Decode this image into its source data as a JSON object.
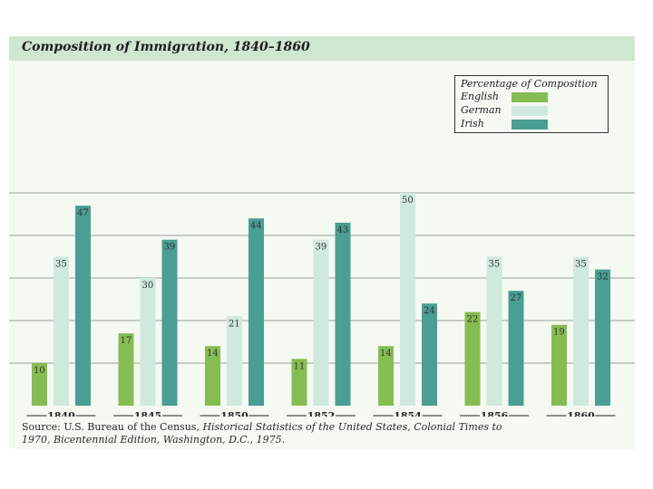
{
  "title": "Composition of Immigration, 1840–1860",
  "chart_data": {
    "type": "bar",
    "title": "Composition of Immigration, 1840–1860",
    "legend_title": "Percentage of Composition",
    "legend_position": "top-right",
    "categories": [
      "1840",
      "1845",
      "1850",
      "1852",
      "1854",
      "1856",
      "1860"
    ],
    "series": [
      {
        "name": "English",
        "color": "#86bd52",
        "values": [
          10,
          17,
          14,
          11,
          14,
          22,
          19
        ]
      },
      {
        "name": "German",
        "color": "#cfe9dd",
        "values": [
          35,
          30,
          21,
          39,
          50,
          35,
          35
        ]
      },
      {
        "name": "Irish",
        "color": "#4a9e93",
        "values": [
          47,
          39,
          44,
          43,
          24,
          27,
          32
        ]
      }
    ],
    "ylim": [
      0,
      55
    ],
    "grid": true,
    "xlabel": "",
    "ylabel": ""
  },
  "source": {
    "prefix": "Source: U.S. Bureau of the Census, ",
    "work": "Historical Statistics of the United States, Colonial Times to 1970,",
    "suffix": " Bicentennial Edition, Washington, D.C., 1975."
  }
}
